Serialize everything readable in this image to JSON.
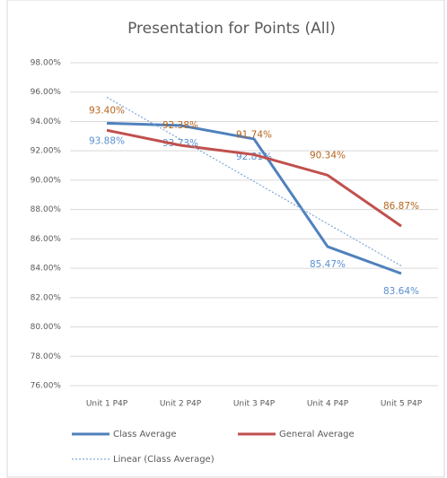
{
  "chart_data": {
    "type": "line",
    "title": "Presentation for Points (All)",
    "categories": [
      "Unit 1 P4P",
      "Unit 2 P4P",
      "Unit 3 P4P",
      "Unit 4 P4P",
      "Unit 5 P4P"
    ],
    "series": [
      {
        "name": "Class Average",
        "color": "#4f81bd",
        "label_color": "#5b8fd0",
        "label_side": "below",
        "values": [
          93.88,
          93.73,
          92.81,
          85.47,
          83.64
        ],
        "value_labels": [
          "93.88%",
          "93.73%",
          "92.81%",
          "85.47%",
          "83.64%"
        ]
      },
      {
        "name": "General Average",
        "color": "#c0504d",
        "label_color": "#b5651d",
        "label_side": "above",
        "values": [
          93.4,
          92.38,
          91.74,
          90.34,
          86.87
        ],
        "value_labels": [
          "93.40%",
          "92.38%",
          "91.74%",
          "90.34%",
          "86.87%"
        ]
      },
      {
        "name": "Linear (Class Average)",
        "color": "#7fa7d9",
        "dashed": true,
        "values": [
          95.65,
          92.78,
          89.91,
          87.03,
          84.16
        ]
      }
    ],
    "ylim": [
      76,
      98
    ],
    "yticks": [
      {
        "value": 76,
        "label": "76.00%"
      },
      {
        "value": 78,
        "label": "78.00%"
      },
      {
        "value": 80,
        "label": "80.00%"
      },
      {
        "value": 82,
        "label": "82.00%"
      },
      {
        "value": 84,
        "label": "84.00%"
      },
      {
        "value": 86,
        "label": "86.00%"
      },
      {
        "value": 88,
        "label": "88.00%"
      },
      {
        "value": 90,
        "label": "90.00%"
      },
      {
        "value": 92,
        "label": "92.00%"
      },
      {
        "value": 94,
        "label": "94.00%"
      },
      {
        "value": 96,
        "label": "96.00%"
      },
      {
        "value": 98,
        "label": "98.00%"
      }
    ],
    "grid": true,
    "legend": "bottom"
  }
}
